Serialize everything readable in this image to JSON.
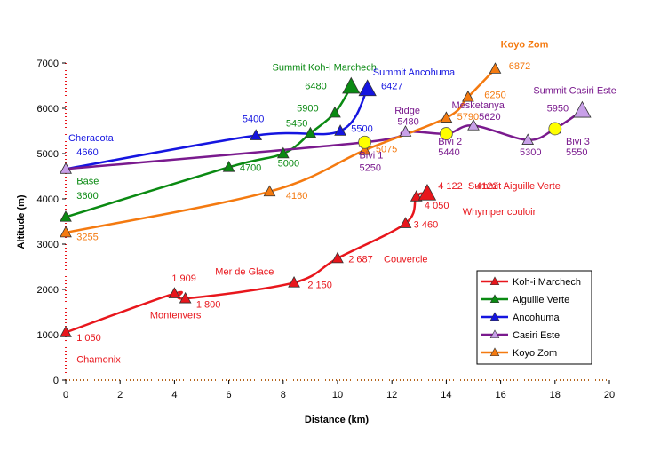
{
  "chart_data": {
    "type": "line",
    "xlabel": "Distance (km)",
    "ylabel": "Altitude (m)",
    "xlim": [
      0,
      20
    ],
    "ylim": [
      0,
      7000
    ],
    "x_ticks": [
      0,
      2,
      4,
      6,
      8,
      10,
      12,
      14,
      16,
      18,
      20
    ],
    "y_ticks": [
      0,
      1000,
      2000,
      3000,
      4000,
      5000,
      6000,
      7000
    ],
    "grid": false,
    "legend_position": "bottom-right",
    "series": [
      {
        "name": "Koh-i Marchech",
        "color": "#e8161c",
        "points": [
          {
            "x": 0,
            "y": 1050
          },
          {
            "x": 4,
            "y": 1909
          },
          {
            "x": 4.4,
            "y": 1800
          },
          {
            "x": 8.4,
            "y": 2150
          },
          {
            "x": 10,
            "y": 2687
          },
          {
            "x": 12.5,
            "y": 3460
          },
          {
            "x": 12.9,
            "y": 4050
          },
          {
            "x": 13.3,
            "y": 4122
          }
        ]
      },
      {
        "name": "Aiguille Verte",
        "color": "#0a8a12",
        "points": [
          {
            "x": 0,
            "y": 3600
          },
          {
            "x": 6,
            "y": 4700
          },
          {
            "x": 8,
            "y": 5000
          },
          {
            "x": 9,
            "y": 5450
          },
          {
            "x": 9.9,
            "y": 5900
          },
          {
            "x": 10.5,
            "y": 6480
          }
        ]
      },
      {
        "name": "Ancohuma",
        "color": "#1515e0",
        "points": [
          {
            "x": 0,
            "y": 4660
          },
          {
            "x": 7,
            "y": 5400
          },
          {
            "x": 10.1,
            "y": 5500
          },
          {
            "x": 11.1,
            "y": 6427
          }
        ]
      },
      {
        "name": "Casiri Este",
        "color": "#7a1a8e",
        "points": [
          {
            "x": 0,
            "y": 4660
          },
          {
            "x": 11,
            "y": 5250
          },
          {
            "x": 12.5,
            "y": 5480
          },
          {
            "x": 14,
            "y": 5440
          },
          {
            "x": 15,
            "y": 5620
          },
          {
            "x": 17,
            "y": 5300
          },
          {
            "x": 18,
            "y": 5550
          },
          {
            "x": 19,
            "y": 5950
          }
        ]
      },
      {
        "name": "Koyo Zom",
        "color": "#f47a10",
        "points": [
          {
            "x": 0,
            "y": 3255
          },
          {
            "x": 7.5,
            "y": 4160
          },
          {
            "x": 11,
            "y": 5075
          },
          {
            "x": 14,
            "y": 5790
          },
          {
            "x": 14.8,
            "y": 6250
          },
          {
            "x": 15.8,
            "y": 6872
          }
        ]
      }
    ],
    "bivouacs": [
      {
        "x": 11,
        "y": 5250,
        "label": "Bivi 1"
      },
      {
        "x": 14,
        "y": 5440,
        "label": "Bivi 2"
      },
      {
        "x": 18,
        "y": 5550,
        "label": "Bivi 3"
      }
    ],
    "annotations": [
      {
        "text": "Koyo Zom",
        "x": 16,
        "y": 7340,
        "color": "#f47a10",
        "bold": true
      },
      {
        "text": "Summit Koh-i Marchech",
        "x": 7.6,
        "y": 6830,
        "color": "#0a8a12"
      },
      {
        "text": "Summit Ancohuma",
        "x": 11.3,
        "y": 6730,
        "color": "#1515e0"
      },
      {
        "text": "6872",
        "x": 16.3,
        "y": 6860,
        "color": "#f47a10"
      },
      {
        "text": "6480",
        "x": 8.8,
        "y": 6420,
        "color": "#0a8a12"
      },
      {
        "text": "6427",
        "x": 11.6,
        "y": 6420,
        "color": "#1515e0"
      },
      {
        "text": "Summit Casiri Este",
        "x": 17.2,
        "y": 6320,
        "color": "#7a1a8e"
      },
      {
        "text": "6250",
        "x": 15.4,
        "y": 6230,
        "color": "#f47a10"
      },
      {
        "text": "5900",
        "x": 8.5,
        "y": 5930,
        "color": "#0a8a12"
      },
      {
        "text": "5950",
        "x": 17.7,
        "y": 5930,
        "color": "#7a1a8e"
      },
      {
        "text": "Mesketanya",
        "x": 14.2,
        "y": 6000,
        "color": "#7a1a8e"
      },
      {
        "text": "Ridge",
        "x": 12.1,
        "y": 5880,
        "color": "#7a1a8e"
      },
      {
        "text": "5790",
        "x": 14.4,
        "y": 5750,
        "color": "#f47a10"
      },
      {
        "text": "5620",
        "x": 15.2,
        "y": 5750,
        "color": "#7a1a8e"
      },
      {
        "text": "5400",
        "x": 6.5,
        "y": 5700,
        "color": "#1515e0"
      },
      {
        "text": "5480",
        "x": 12.2,
        "y": 5640,
        "color": "#7a1a8e"
      },
      {
        "text": "5450",
        "x": 8.1,
        "y": 5600,
        "color": "#0a8a12"
      },
      {
        "text": "5500",
        "x": 10.5,
        "y": 5480,
        "color": "#1515e0"
      },
      {
        "text": "Cheracota",
        "x": 0.1,
        "y": 5270,
        "color": "#1515e0"
      },
      {
        "text": "4660",
        "x": 0.4,
        "y": 4960,
        "color": "#1515e0"
      },
      {
        "text": "Bivi 2",
        "x": 13.7,
        "y": 5200,
        "color": "#7a1a8e"
      },
      {
        "text": "Bivi 3",
        "x": 18.4,
        "y": 5200,
        "color": "#7a1a8e"
      },
      {
        "text": "5075",
        "x": 11.4,
        "y": 5030,
        "color": "#f47a10"
      },
      {
        "text": "5440",
        "x": 13.7,
        "y": 4960,
        "color": "#7a1a8e"
      },
      {
        "text": "5300",
        "x": 16.7,
        "y": 4960,
        "color": "#7a1a8e"
      },
      {
        "text": "5550",
        "x": 18.4,
        "y": 4960,
        "color": "#7a1a8e"
      },
      {
        "text": "Bivi 1",
        "x": 10.8,
        "y": 4890,
        "color": "#7a1a8e"
      },
      {
        "text": "5000",
        "x": 7.8,
        "y": 4720,
        "color": "#0a8a12"
      },
      {
        "text": "4700",
        "x": 6.4,
        "y": 4620,
        "color": "#0a8a12"
      },
      {
        "text": "5250",
        "x": 10.8,
        "y": 4620,
        "color": "#7a1a8e"
      },
      {
        "text": "Base",
        "x": 0.4,
        "y": 4320,
        "color": "#0a8a12"
      },
      {
        "text": "4122",
        "x": 15.1,
        "y": 4220,
        "color": "#e8161c"
      },
      {
        "text": "4 122",
        "x": 13.7,
        "y": 4220,
        "color": "#e8161c"
      },
      {
        "text": "Summit Aiguille Verte",
        "x": 14.8,
        "y": 4220,
        "color": "#e8161c"
      },
      {
        "text": "4160",
        "x": 8.1,
        "y": 4000,
        "color": "#f47a10"
      },
      {
        "text": "3600",
        "x": 0.4,
        "y": 4000,
        "color": "#0a8a12"
      },
      {
        "text": "4 050",
        "x": 13.2,
        "y": 3780,
        "color": "#e8161c"
      },
      {
        "text": "Whymper couloir",
        "x": 14.6,
        "y": 3650,
        "color": "#e8161c"
      },
      {
        "text": "3 460",
        "x": 12.8,
        "y": 3360,
        "color": "#e8161c"
      },
      {
        "text": "3255",
        "x": 0.4,
        "y": 3090,
        "color": "#f47a10"
      },
      {
        "text": "2 687",
        "x": 10.4,
        "y": 2600,
        "color": "#e8161c"
      },
      {
        "text": "Couvercle",
        "x": 11.7,
        "y": 2600,
        "color": "#e8161c"
      },
      {
        "text": "Mer de Glace",
        "x": 5.5,
        "y": 2320,
        "color": "#e8161c"
      },
      {
        "text": "1 909",
        "x": 3.9,
        "y": 2180,
        "color": "#e8161c"
      },
      {
        "text": "2 150",
        "x": 8.9,
        "y": 2030,
        "color": "#e8161c"
      },
      {
        "text": "1 800",
        "x": 4.8,
        "y": 1600,
        "color": "#e8161c"
      },
      {
        "text": "Montenvers",
        "x": 3.1,
        "y": 1360,
        "color": "#e8161c"
      },
      {
        "text": "1 050",
        "x": 0.4,
        "y": 860,
        "color": "#e8161c"
      },
      {
        "text": "Chamonix",
        "x": 0.4,
        "y": 380,
        "color": "#e8161c"
      }
    ]
  }
}
